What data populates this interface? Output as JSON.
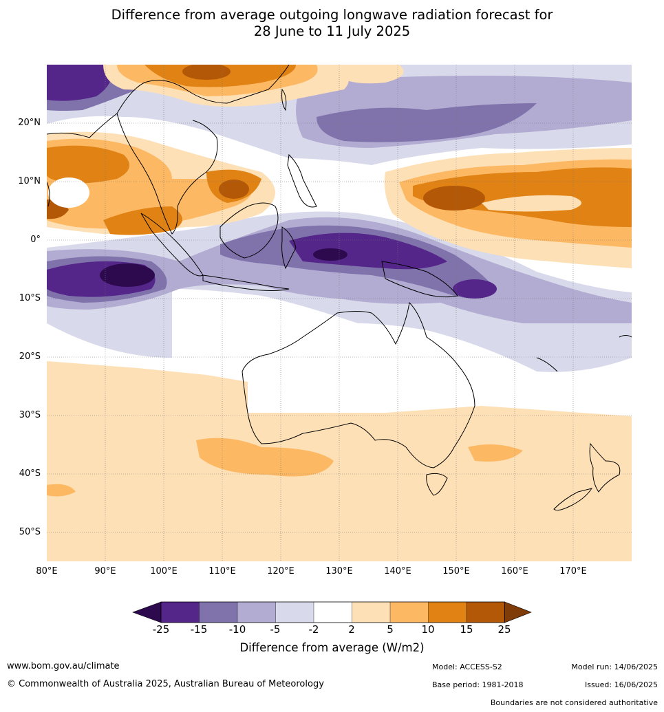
{
  "title": {
    "line1": "Difference from average outgoing longwave radiation forecast for",
    "line2": "28 June to 11 July 2025"
  },
  "map": {
    "lat_labels": [
      "20°N",
      "10°N",
      "0°",
      "10°S",
      "20°S",
      "30°S",
      "40°S",
      "50°S"
    ],
    "lon_labels": [
      "80°E",
      "90°E",
      "100°E",
      "110°E",
      "120°E",
      "130°E",
      "140°E",
      "150°E",
      "160°E",
      "170°E"
    ],
    "colors": {
      "neg25": "#2d0a4e",
      "neg15": "#542689",
      "neg10": "#8073ac",
      "neg5": "#b2abd2",
      "neg2": "#d8daeb",
      "zero": "#ffffff",
      "pos2": "#fee0b6",
      "pos5": "#fdb863",
      "pos10": "#e08214",
      "pos15": "#b35806",
      "pos25": "#7f3b08"
    }
  },
  "colorbar": {
    "ticks": [
      "-25",
      "-15",
      "-10",
      "-5",
      "-2",
      "2",
      "5",
      "10",
      "15",
      "25"
    ],
    "title": "Difference from average (W/m2)"
  },
  "footer": {
    "website": "www.bom.gov.au/climate",
    "copyright": "© Commonwealth of Australia 2025, Australian Bureau of Meteorology",
    "model": "Model: ACCESS-S2",
    "base_period": "Base period: 1981-2018",
    "model_run": "Model run: 14/06/2025",
    "issued": "Issued: 16/06/2025",
    "disclaimer": "Boundaries are not considered authoritative"
  }
}
